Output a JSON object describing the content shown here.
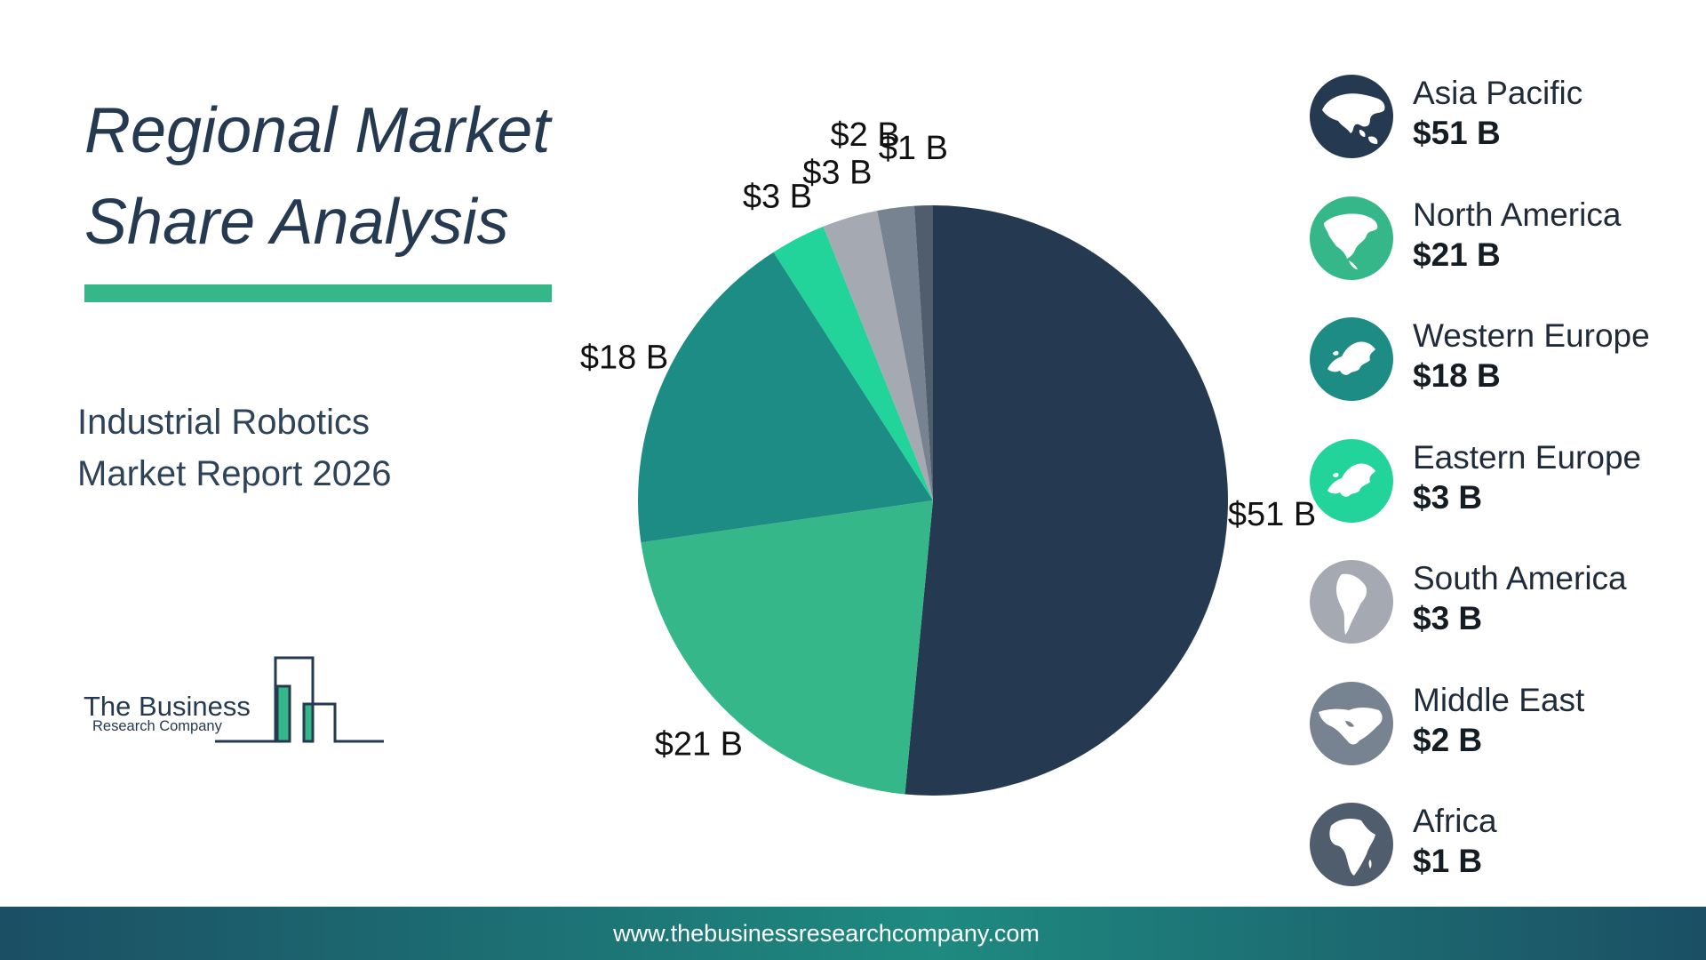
{
  "header": {
    "title": "Regional Market Share Analysis",
    "subtitle": "Industrial Robotics Market Report 2026"
  },
  "logo": {
    "name": "The Business",
    "sub": "Research Company"
  },
  "footer": {
    "url": "www.thebusinessresearchcompany.com"
  },
  "colors": {
    "title": "#253a50",
    "accent_rule": "#35b78a",
    "footer_dark": "#1b4f64",
    "footer_light": "#1e8a80"
  },
  "chart_data": {
    "type": "pie",
    "categories": [
      "Asia Pacific",
      "North America",
      "Western Europe",
      "Eastern Europe",
      "South America",
      "Middle East",
      "Africa"
    ],
    "values": [
      51,
      21,
      18,
      3,
      3,
      2,
      1
    ],
    "labels": [
      "$51 B",
      "$21 B",
      "$18 B",
      "$3 B",
      "$3 B",
      "$2 B",
      "$1 B"
    ],
    "colors": [
      "#253a50",
      "#35b78a",
      "#1c8c84",
      "#22d39a",
      "#a4a9b2",
      "#778390",
      "#4f5d6d"
    ],
    "start_angle_deg": 0,
    "direction": "clockwise",
    "legend_position": "right"
  },
  "legend": {
    "items": [
      {
        "name": "Asia Pacific",
        "value": "$51 B",
        "icon": "asia-map-icon",
        "color": "#253a50"
      },
      {
        "name": "North America",
        "value": "$21 B",
        "icon": "north-america-map-icon",
        "color": "#35b78a"
      },
      {
        "name": "Western Europe",
        "value": "$18 B",
        "icon": "europe-map-icon",
        "color": "#1c8c84"
      },
      {
        "name": "Eastern Europe",
        "value": "$3 B",
        "icon": "europe-map-icon",
        "color": "#22d39a"
      },
      {
        "name": "South America",
        "value": "$3 B",
        "icon": "south-america-map-icon",
        "color": "#a4a9b2"
      },
      {
        "name": "Middle East",
        "value": "$2 B",
        "icon": "middle-east-map-icon",
        "color": "#778390"
      },
      {
        "name": "Africa",
        "value": "$1 B",
        "icon": "africa-map-icon",
        "color": "#4f5d6d"
      }
    ]
  }
}
